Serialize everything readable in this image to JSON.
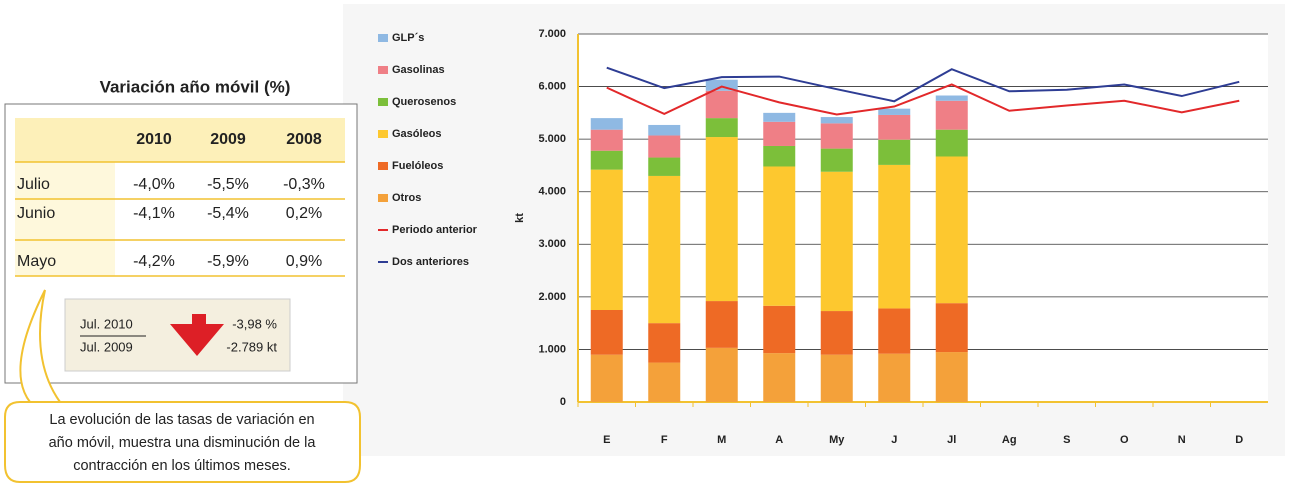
{
  "table": {
    "title": "Variación año móvil (%)",
    "columns": [
      "2010",
      "2009",
      "2008"
    ],
    "rows": [
      {
        "label": "Julio",
        "values": [
          "-4,0%",
          "-5,5%",
          "-0,3%"
        ]
      },
      {
        "label": "Junio",
        "values": [
          "-4,1%",
          "-5,4%",
          "0,2%"
        ]
      },
      {
        "label": "Mayo",
        "values": [
          "-4,2%",
          "-5,9%",
          "0,9%"
        ]
      }
    ]
  },
  "summary": {
    "numerator": "Jul. 2010",
    "denominator": "Jul. 2009",
    "percent": "-3,98 %",
    "kt": "-2.789 kt"
  },
  "callout": [
    "La evolución de las tasas de variación en",
    "año móvil, muestra una disminución de la",
    "contracción en los últimos meses."
  ],
  "chart_data": {
    "type": "bar",
    "y_label": "kt",
    "categories": [
      "E",
      "F",
      "M",
      "A",
      "My",
      "J",
      "Jl",
      "Ag",
      "S",
      "O",
      "N",
      "D"
    ],
    "ylim": [
      0,
      7000
    ],
    "yticks": [
      0,
      {
        "value": 1000,
        "label": "1.000"
      },
      {
        "value": 2000,
        "label": "2.000"
      },
      {
        "value": 3000,
        "label": "3.000"
      },
      {
        "value": 4000,
        "label": "4.000"
      },
      {
        "value": 5000,
        "label": "5.000"
      },
      {
        "value": 6000,
        "label": "6.000"
      },
      {
        "value": 7000,
        "label": "7.000"
      }
    ],
    "grid": true,
    "legend": "left",
    "series": [
      {
        "name": "Otros",
        "color": "#f4a13a",
        "values": [
          900,
          750,
          1030,
          930,
          900,
          920,
          950,
          null,
          null,
          null,
          null,
          null
        ]
      },
      {
        "name": "Fuelóleos",
        "color": "#ee6a25",
        "values": [
          850,
          750,
          890,
          900,
          830,
          860,
          930,
          null,
          null,
          null,
          null,
          null
        ]
      },
      {
        "name": "Gasóleos",
        "color": "#fdc82f",
        "values": [
          2670,
          2800,
          3120,
          2650,
          2650,
          2730,
          2790,
          null,
          null,
          null,
          null,
          null
        ]
      },
      {
        "name": "Querosenos",
        "color": "#7cbf3a",
        "values": [
          360,
          350,
          360,
          390,
          440,
          480,
          510,
          null,
          null,
          null,
          null,
          null
        ]
      },
      {
        "name": "Gasolinas",
        "color": "#ef7f86",
        "values": [
          400,
          420,
          520,
          460,
          480,
          470,
          550,
          null,
          null,
          null,
          null,
          null
        ]
      },
      {
        "name": "GLP´s",
        "color": "#8fb9e3",
        "values": [
          220,
          200,
          210,
          170,
          120,
          120,
          100,
          null,
          null,
          null,
          null,
          null
        ]
      },
      {
        "name": "Periodo anterior",
        "type": "line",
        "color": "#e2282a",
        "values": [
          5980,
          5480,
          6000,
          5700,
          5470,
          5620,
          6040,
          5540,
          5640,
          5730,
          5510,
          5730
        ]
      },
      {
        "name": "Dos anteriores",
        "type": "line",
        "color": "#2e3d94",
        "values": [
          6360,
          5970,
          6180,
          6190,
          5950,
          5720,
          6330,
          5910,
          5940,
          6040,
          5820,
          6090
        ]
      }
    ]
  }
}
